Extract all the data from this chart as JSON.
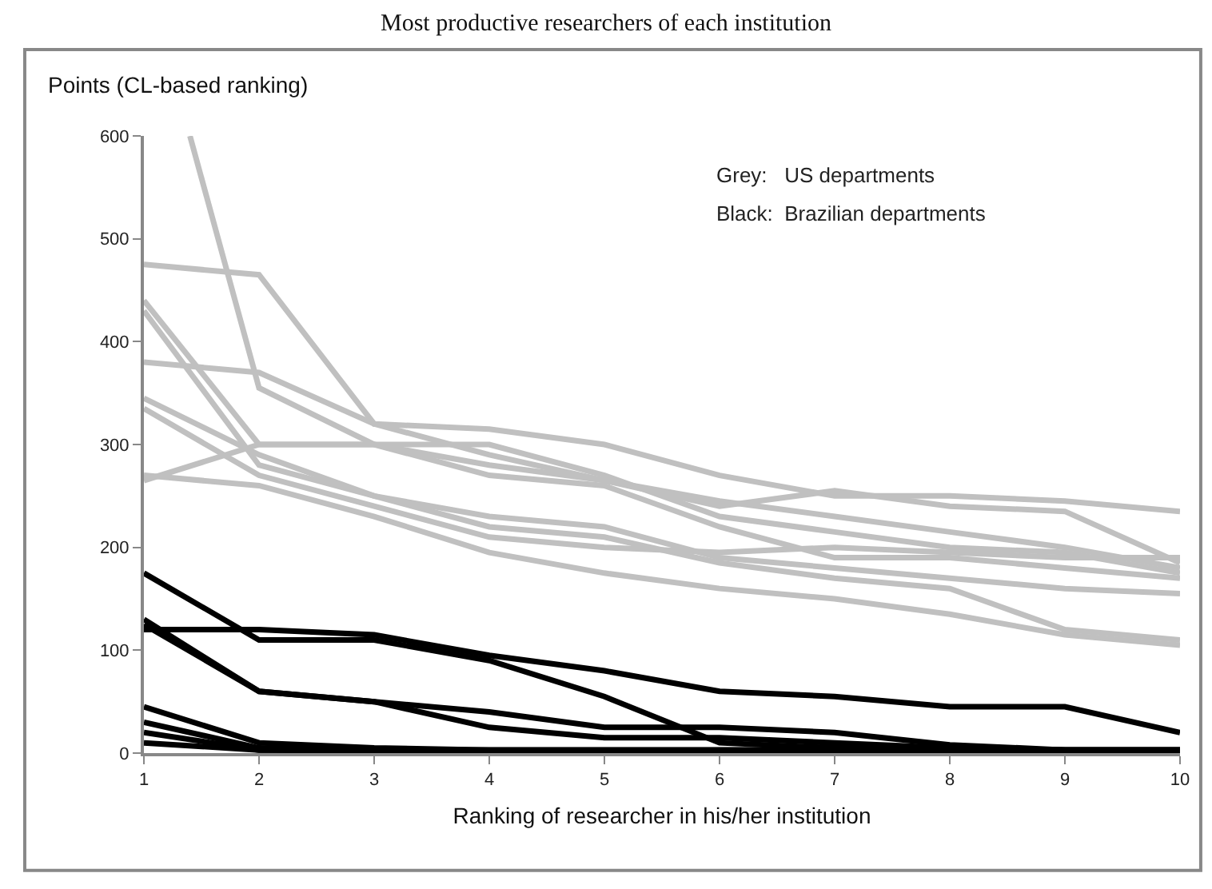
{
  "chart_data": {
    "type": "line",
    "title": "Most productive researchers of each institution",
    "xlabel": "Ranking of researcher in his/her institution",
    "ylabel": "Points (CL-based ranking)",
    "annotations": [
      "Grey:   US departments",
      "Black:  Brazilian departments"
    ],
    "x": [
      1,
      2,
      3,
      4,
      5,
      6,
      7,
      8,
      9,
      10
    ],
    "xlim": [
      1,
      10
    ],
    "xticks": [
      1,
      2,
      3,
      4,
      5,
      6,
      7,
      8,
      9,
      10
    ],
    "ylim": [
      0,
      600
    ],
    "yticks": [
      0,
      100,
      200,
      300,
      400,
      500,
      600
    ],
    "grid": false,
    "marker": "none",
    "line_style": "solid",
    "series": [
      {
        "color": "#c0c0c0",
        "x": [
          1.4,
          2,
          3,
          4,
          5,
          6,
          7,
          8,
          9,
          10
        ],
        "values": [
          600,
          355,
          300,
          280,
          265,
          240,
          255,
          240,
          235,
          185
        ]
      },
      {
        "color": "#c0c0c0",
        "values": [
          475,
          465,
          320,
          315,
          300,
          270,
          250,
          250,
          245,
          235
        ]
      },
      {
        "color": "#c0c0c0",
        "values": [
          380,
          370,
          320,
          290,
          265,
          245,
          230,
          215,
          200,
          180
        ]
      },
      {
        "color": "#c0c0c0",
        "values": [
          440,
          300,
          300,
          300,
          270,
          230,
          215,
          200,
          195,
          175
        ]
      },
      {
        "color": "#c0c0c0",
        "values": [
          430,
          280,
          250,
          230,
          220,
          190,
          180,
          170,
          160,
          155
        ]
      },
      {
        "color": "#c0c0c0",
        "values": [
          345,
          290,
          250,
          220,
          210,
          185,
          170,
          160,
          120,
          110
        ]
      },
      {
        "color": "#c0c0c0",
        "values": [
          335,
          270,
          240,
          210,
          200,
          195,
          200,
          195,
          190,
          190
        ]
      },
      {
        "color": "#c0c0c0",
        "values": [
          270,
          260,
          230,
          195,
          175,
          160,
          150,
          135,
          115,
          105
        ]
      },
      {
        "color": "#c0c0c0",
        "values": [
          265,
          300,
          300,
          270,
          260,
          220,
          190,
          190,
          180,
          170
        ]
      },
      {
        "color": "#000000",
        "values": [
          175,
          110,
          110,
          90,
          55,
          10,
          5,
          5,
          3,
          3
        ]
      },
      {
        "color": "#000000",
        "values": [
          120,
          120,
          115,
          95,
          80,
          60,
          55,
          45,
          45,
          20
        ]
      },
      {
        "color": "#000000",
        "values": [
          130,
          60,
          50,
          40,
          25,
          25,
          20,
          8,
          3,
          3
        ]
      },
      {
        "color": "#000000",
        "values": [
          125,
          60,
          50,
          25,
          15,
          15,
          10,
          5,
          3,
          3
        ]
      },
      {
        "color": "#000000",
        "values": [
          45,
          10,
          5,
          3,
          3,
          3,
          3,
          3,
          3,
          3
        ]
      },
      {
        "color": "#000000",
        "values": [
          30,
          5,
          3,
          3,
          3,
          3,
          3,
          3,
          3,
          3
        ]
      },
      {
        "color": "#000000",
        "values": [
          20,
          3,
          3,
          3,
          3,
          3,
          3,
          3,
          3,
          3
        ]
      },
      {
        "color": "#000000",
        "values": [
          10,
          3,
          2,
          2,
          2,
          2,
          2,
          2,
          2,
          2
        ]
      }
    ]
  }
}
